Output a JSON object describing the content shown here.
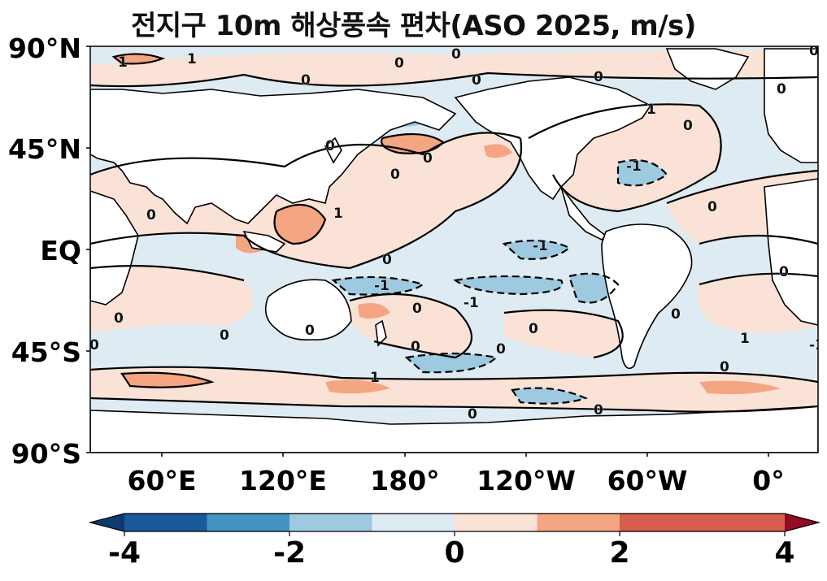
{
  "title": "전지구 10m 해상풍속 편차(ASO 2025, m/s)",
  "map": {
    "projection": "PlateCarree",
    "central_longitude": 200,
    "lat_labels": [
      "90°N",
      "45°N",
      "EQ",
      "45°S",
      "90°S"
    ],
    "lon_labels": [
      "60°E",
      "120°E",
      "180°",
      "120°W",
      "60°W",
      "0°"
    ],
    "land_color": "#ffffff",
    "contour_levels": [
      -1,
      0,
      1
    ],
    "contour_label_text": [
      "0",
      "1",
      "-1"
    ]
  },
  "colorbar": {
    "tick_labels": [
      "-4",
      "-2",
      "0",
      "2",
      "4"
    ],
    "bins": [
      -4,
      -3,
      -2,
      -1,
      0,
      1,
      2,
      3,
      4
    ],
    "colors": [
      "#0d3a70",
      "#1b5a9a",
      "#4393c3",
      "#9dc9e1",
      "#deebf3",
      "#fbe2d6",
      "#f4a582",
      "#d6604d",
      "#960b24"
    ],
    "extend": "both"
  }
}
